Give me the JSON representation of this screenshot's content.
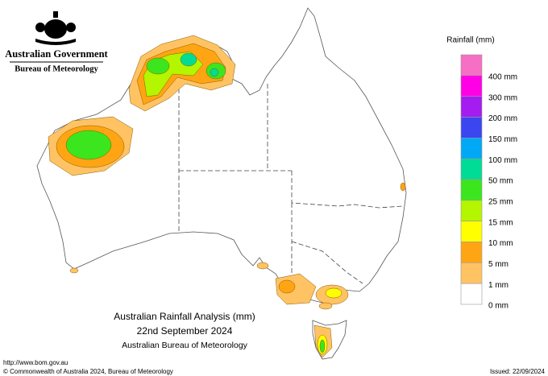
{
  "header": {
    "government": "Australian Government",
    "agency": "Bureau of Meteorology"
  },
  "legend": {
    "title": "Rainfall (mm)",
    "colors": [
      "#f56fc4",
      "#ff00e6",
      "#a51cf0",
      "#3c46f0",
      "#00a8f5",
      "#00dc96",
      "#3ce61e",
      "#b4f500",
      "#ffff00",
      "#ffa514",
      "#ffc364",
      "#ffffff"
    ],
    "labels": [
      null,
      "400 mm",
      "300 mm",
      "200 mm",
      "150 mm",
      "100 mm",
      "50 mm",
      "25 mm",
      "15 mm",
      "10 mm",
      "5 mm",
      "1 mm",
      "0 mm"
    ]
  },
  "map_title": {
    "line1": "Australian Rainfall Analysis (mm)",
    "line2": "22nd September 2024",
    "line3": "Australian Bureau of Meteorology"
  },
  "footer": {
    "url": "http://www.bom.gov.au",
    "copyright": "© Commonwealth of Australia 2024, Bureau of Meteorology",
    "issued": "Issued: 22/09/2024"
  }
}
